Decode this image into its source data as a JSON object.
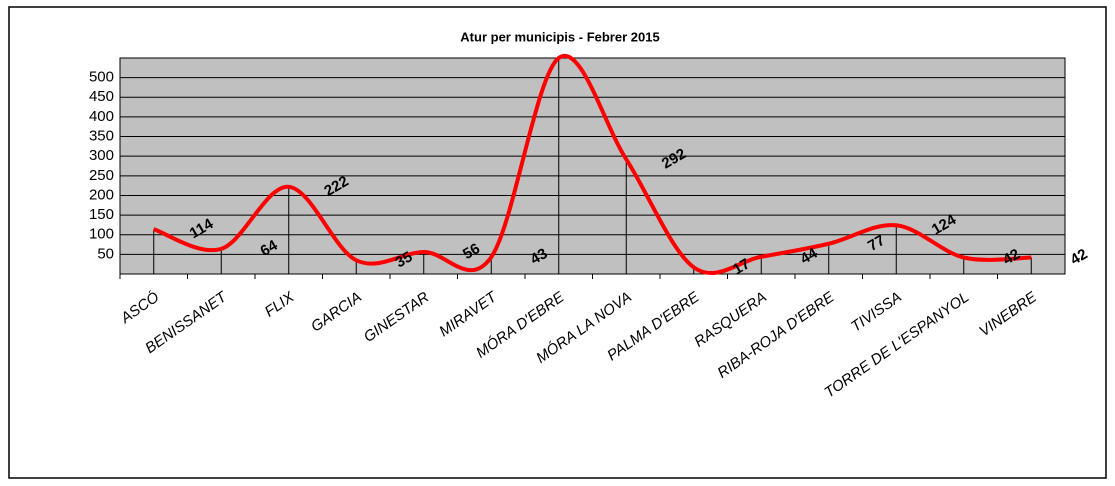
{
  "chart_data": {
    "type": "line",
    "title": "Atur per municipis -  Febrer 2015",
    "categories": [
      "ASCÓ",
      "BENISSANET",
      "FLIX",
      "GARCIA",
      "GINESTAR",
      "MIRAVET",
      "MÓRA D'EBRE",
      "MÓRA LA NOVA",
      "PALMA D'EBRE",
      "RASQUERA",
      "RIBA-ROJA D'EBRE",
      "TIVISSA",
      "TORRE DE L'ESPANYOL",
      "VINEBRE"
    ],
    "values": [
      114,
      64,
      222,
      35,
      56,
      43,
      550,
      292,
      17,
      44,
      77,
      124,
      42,
      42
    ],
    "color": "#ff0000",
    "ylim": [
      0,
      550
    ],
    "yticks": [
      50,
      100,
      150,
      200,
      250,
      300,
      350,
      400,
      450,
      500
    ],
    "grid": true
  }
}
